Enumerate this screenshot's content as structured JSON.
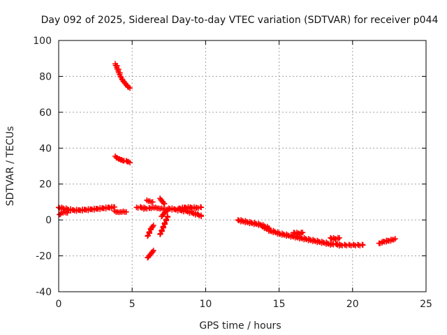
{
  "chart_data": {
    "type": "scatter",
    "title": "Day 092 of 2025, Sidereal Day-to-day VTEC variation (SDTVAR) for receiver p044",
    "xlabel": "GPS time / hours",
    "ylabel": "SDTVAR / TECUs",
    "xlim": [
      0,
      25
    ],
    "ylim": [
      -40,
      100
    ],
    "xticks": [
      0,
      5,
      10,
      15,
      20,
      25
    ],
    "yticks": [
      -40,
      -20,
      0,
      20,
      40,
      60,
      80,
      100
    ],
    "grid": true,
    "marker": "+",
    "colors": {
      "series": "#ff0000",
      "grid": "#a0a0a0",
      "axes": "#000000"
    },
    "series": [
      {
        "name": "SDTVAR",
        "segments": [
          {
            "x": [
              0.0,
              0.3,
              0.6,
              1.0,
              1.4,
              1.8,
              2.2,
              2.6,
              3.0,
              3.4,
              3.8
            ],
            "y": [
              7,
              6.5,
              6,
              5.5,
              5.5,
              5.8,
              6,
              6.3,
              6.6,
              7,
              7.2
            ]
          },
          {
            "x": [
              0.05,
              0.2,
              0.4,
              0.6
            ],
            "y": [
              3,
              4,
              4.5,
              4
            ]
          },
          {
            "x": [
              3.8,
              4.0,
              4.2,
              4.4,
              4.6
            ],
            "y": [
              5,
              4.5,
              4.5,
              4.8,
              4.5
            ]
          },
          {
            "x": [
              3.85,
              3.95,
              4.05,
              4.15,
              4.25,
              4.35,
              4.45,
              4.55,
              4.65,
              4.75,
              4.85
            ],
            "y": [
              87,
              85,
              83,
              81,
              79.5,
              78,
              77,
              76,
              75,
              74,
              73.5
            ]
          },
          {
            "x": [
              3.85,
              4.0,
              4.15,
              4.3,
              4.45,
              4.6,
              4.75,
              4.85
            ],
            "y": [
              35.5,
              34.5,
              34,
              33.5,
              33,
              33,
              32.5,
              32
            ]
          },
          {
            "x": [
              5.3,
              5.6,
              5.9,
              6.2,
              6.4,
              6.6,
              6.8,
              7.0,
              7.2,
              7.4
            ],
            "y": [
              7,
              7,
              6.5,
              6.5,
              7,
              7,
              6.5,
              6.5,
              6,
              6
            ]
          },
          {
            "x": [
              6.0,
              6.2,
              6.4
            ],
            "y": [
              11,
              10.5,
              10
            ]
          },
          {
            "x": [
              6.9,
              7.0,
              7.1,
              7.2
            ],
            "y": [
              12,
              11,
              10,
              9
            ]
          },
          {
            "x": [
              7.5,
              7.9,
              8.3,
              8.7,
              9.1,
              9.5,
              9.7
            ],
            "y": [
              6.5,
              6,
              5.5,
              5,
              4,
              3,
              2
            ]
          },
          {
            "x": [
              8.2,
              8.6,
              9.0,
              9.4,
              9.7
            ],
            "y": [
              6.5,
              7,
              7,
              6.8,
              7
            ]
          },
          {
            "x": [
              6.05,
              6.15,
              6.25,
              6.35,
              6.45
            ],
            "y": [
              -9,
              -7,
              -5,
              -4,
              -3
            ]
          },
          {
            "x": [
              6.05,
              6.15,
              6.25,
              6.35,
              6.45
            ],
            "y": [
              -21,
              -20,
              -19,
              -18,
              -17
            ]
          },
          {
            "x": [
              6.9,
              7.0,
              7.1,
              7.2,
              7.3,
              7.4
            ],
            "y": [
              -8,
              -6,
              -4,
              -2,
              0,
              2
            ]
          },
          {
            "x": [
              7.0,
              7.1,
              7.2,
              7.3,
              7.4
            ],
            "y": [
              2,
              3,
              4,
              4.5,
              5
            ]
          },
          {
            "x": [
              12.2,
              12.5,
              12.8,
              13.1,
              13.4,
              13.7,
              14.0,
              14.3
            ],
            "y": [
              0,
              -0.5,
              -1,
              -1.5,
              -2,
              -2.5,
              -3.5,
              -4.5
            ]
          },
          {
            "x": [
              13.8,
              14.1,
              14.4,
              14.7,
              15.0,
              15.3,
              15.6,
              15.9,
              16.2,
              16.5,
              16.8,
              17.1,
              17.4,
              17.7,
              18.0,
              18.3,
              18.6,
              18.9,
              19.2,
              19.5,
              19.8,
              20.1,
              20.4,
              20.7
            ],
            "y": [
              -3,
              -4.5,
              -6,
              -6.5,
              -7.5,
              -8,
              -8.5,
              -9,
              -9.5,
              -10,
              -10.5,
              -11,
              -11.5,
              -12,
              -12.5,
              -13,
              -13.5,
              -13.5,
              -14,
              -14,
              -14,
              -14,
              -14,
              -14
            ]
          },
          {
            "x": [
              16.0,
              16.3,
              16.6
            ],
            "y": [
              -7,
              -7.5,
              -7
            ]
          },
          {
            "x": [
              18.5,
              18.8,
              19.1
            ],
            "y": [
              -10,
              -10.5,
              -10
            ]
          },
          {
            "x": [
              21.8,
              22.1,
              22.4,
              22.7,
              22.9
            ],
            "y": [
              -13,
              -12,
              -11.5,
              -11,
              -10.5
            ]
          }
        ]
      }
    ]
  }
}
